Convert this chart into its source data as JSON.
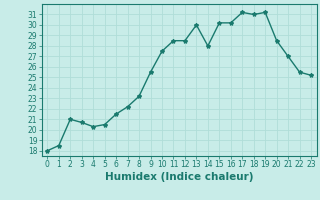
{
  "x": [
    0,
    1,
    2,
    3,
    4,
    5,
    6,
    7,
    8,
    9,
    10,
    11,
    12,
    13,
    14,
    15,
    16,
    17,
    18,
    19,
    20,
    21,
    22,
    23
  ],
  "y": [
    18,
    18.5,
    21,
    20.7,
    20.3,
    20.5,
    21.5,
    22.2,
    23.2,
    25.5,
    27.5,
    28.5,
    28.5,
    30,
    28,
    30.2,
    30.2,
    31.2,
    31.0,
    31.2,
    28.5,
    27.0,
    25.5,
    25.2
  ],
  "line_color": "#1a7a6e",
  "marker": "*",
  "marker_size": 3,
  "bg_color": "#c8ece8",
  "grid_color": "#b0ddd8",
  "xlabel": "Humidex (Indice chaleur)",
  "ylim": [
    17.5,
    32.0
  ],
  "xlim": [
    -0.5,
    23.5
  ],
  "yticks": [
    18,
    19,
    20,
    21,
    22,
    23,
    24,
    25,
    26,
    27,
    28,
    29,
    30,
    31
  ],
  "xticks": [
    0,
    1,
    2,
    3,
    4,
    5,
    6,
    7,
    8,
    9,
    10,
    11,
    12,
    13,
    14,
    15,
    16,
    17,
    18,
    19,
    20,
    21,
    22,
    23
  ],
  "tick_fontsize": 5.5,
  "xlabel_fontsize": 7.5,
  "line_width": 1.0
}
